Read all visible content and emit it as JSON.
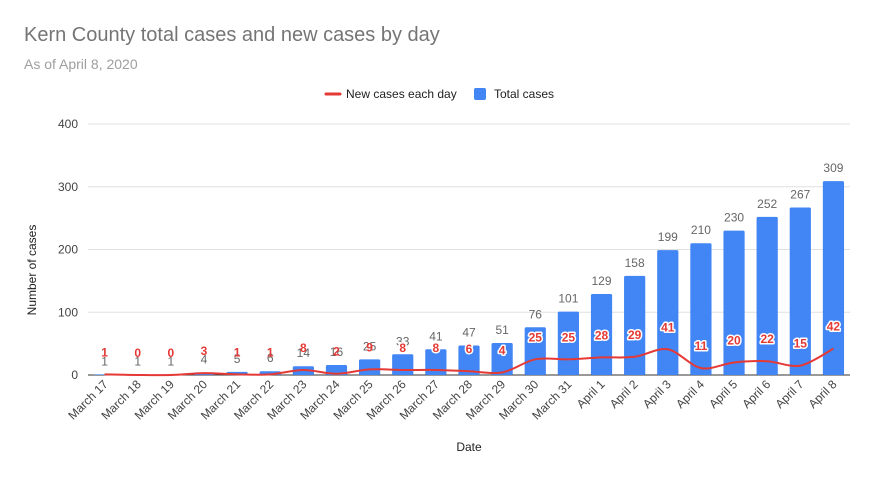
{
  "chart_data": {
    "type": "bar",
    "title": "Kern County total cases and new cases by day",
    "subtitle": "As of April 8, 2020",
    "xlabel": "Date",
    "ylabel": "Number of cases",
    "ylim": [
      0,
      400
    ],
    "yticks": [
      0,
      100,
      200,
      300,
      400
    ],
    "grid": true,
    "legend_position": "top",
    "categories": [
      "March 17",
      "March 18",
      "March 19",
      "March 20",
      "March 21",
      "March 22",
      "March 23",
      "March 24",
      "March 25",
      "March 26",
      "March 27",
      "March 28",
      "March 29",
      "March 30",
      "March 31",
      "April 1",
      "April 2",
      "April 3",
      "April 4",
      "April 5",
      "April 6",
      "April 7",
      "April 8"
    ],
    "series": [
      {
        "name": "New cases each day",
        "type": "line",
        "color": "#e53935",
        "values": [
          1,
          0,
          0,
          3,
          1,
          1,
          8,
          2,
          9,
          8,
          8,
          6,
          4,
          25,
          25,
          28,
          29,
          41,
          11,
          20,
          22,
          15,
          42
        ]
      },
      {
        "name": "Total cases",
        "type": "bar",
        "color": "#4285f4",
        "values": [
          1,
          1,
          1,
          4,
          5,
          6,
          14,
          16,
          25,
          33,
          41,
          47,
          51,
          76,
          101,
          129,
          158,
          199,
          210,
          230,
          252,
          267,
          309
        ]
      }
    ]
  }
}
